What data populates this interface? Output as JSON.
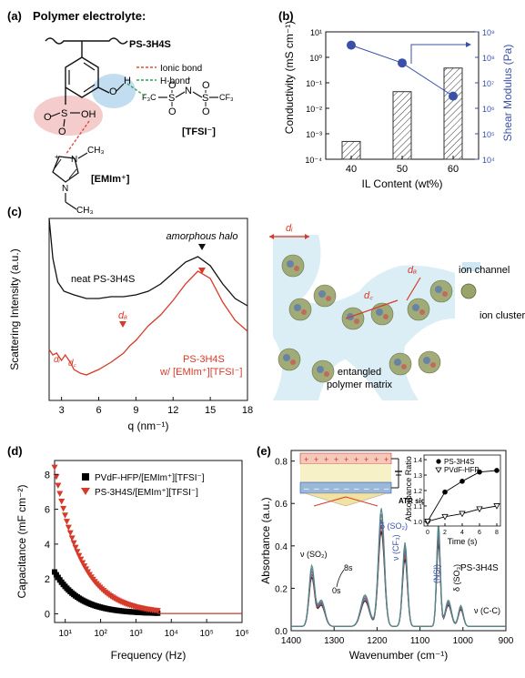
{
  "panel_a": {
    "label": "(a)",
    "title": "Polymer electrolyte:",
    "polymer_name": "PS-3H4S",
    "legend": {
      "ionic": "Ionic bond",
      "hbond": "H-bond"
    },
    "anion_label": "[TFSI⁻]",
    "cation_label": "[EMIm⁺]",
    "colors": {
      "ionic": "#e04a3c",
      "hbond": "#2aa655",
      "red_halo": "#f4c7c7",
      "blue_halo": "#bcd9ee"
    }
  },
  "chart_data": [
    {
      "id": "b",
      "type": "bar",
      "panel_label": "(b)",
      "categories": [
        "40",
        "50",
        "60"
      ],
      "series": [
        {
          "name": "Conductivity",
          "values": [
            0.0005,
            0.045,
            0.38
          ]
        }
      ],
      "secondary_series": [
        {
          "name": "Shear Modulus",
          "type": "line",
          "values": [
            300000000.0,
            60000000.0,
            3000000.0
          ]
        }
      ],
      "xlabel": "IL Content (wt%)",
      "ylabel": "Conductivity (mS cm⁻¹)",
      "y2label": "Shear Modulus (Pa)",
      "ylim": [
        0.0001,
        10
      ],
      "y2lim": [
        10000,
        1000000000
      ],
      "yscale": "log",
      "y_ticks": [
        "10⁻⁴",
        "10⁻³",
        "10⁻²",
        "10⁻¹",
        "10⁰",
        "10¹"
      ],
      "y2_ticks": [
        "10⁴",
        "10⁵",
        "10⁶",
        "10⁷",
        "10⁸",
        "10⁹"
      ],
      "grid": false,
      "colors": {
        "bars": "#333333",
        "line": "#3a50a8"
      }
    },
    {
      "id": "c",
      "type": "line",
      "panel_label": "(c)",
      "x_range": [
        2,
        18
      ],
      "x_ticks": [
        "3",
        "6",
        "9",
        "12",
        "15",
        "18"
      ],
      "xlabel": "q (nm⁻¹)",
      "ylabel": "Scattering Intensity (a.u.)",
      "series": [
        {
          "name": "neat PS-3H4S",
          "x": [
            2.0,
            2.3,
            2.7,
            3.2,
            4.0,
            5.0,
            6.0,
            7.0,
            8.0,
            9.0,
            10.0,
            11.0,
            12.0,
            13.0,
            14.0,
            15.0,
            16.0,
            17.0,
            18.0
          ],
          "y": [
            1.0,
            0.78,
            0.65,
            0.6,
            0.58,
            0.56,
            0.56,
            0.57,
            0.57,
            0.58,
            0.6,
            0.64,
            0.7,
            0.76,
            0.79,
            0.74,
            0.64,
            0.56,
            0.52
          ]
        },
        {
          "name": "PS-3H4S w/ [EMIm⁺][TFSI⁻]",
          "x": [
            2.0,
            2.3,
            2.6,
            3.0,
            3.3,
            3.7,
            4.0,
            4.5,
            5.0,
            6.0,
            7.0,
            8.0,
            8.5,
            9.0,
            9.5,
            10.0,
            11.0,
            12.0,
            13.0,
            14.0,
            15.0,
            16.0,
            17.0,
            18.0
          ],
          "y": [
            0.28,
            0.25,
            0.26,
            0.22,
            0.25,
            0.21,
            0.17,
            0.15,
            0.14,
            0.17,
            0.21,
            0.26,
            0.3,
            0.33,
            0.37,
            0.41,
            0.47,
            0.55,
            0.64,
            0.71,
            0.67,
            0.54,
            0.44,
            0.38
          ]
        }
      ],
      "annotations": {
        "halo": "amorphous halo",
        "di": "dᵢ",
        "dc": "d꜀",
        "da": "dₐ",
        "neat_label": "neat PS-3H4S",
        "il_label_1": "PS-3H4S",
        "il_label_2": "w/ [EMIm⁺][TFSI⁻]"
      },
      "colors": {
        "neat": "#111111",
        "il": "#d63a2a"
      }
    },
    {
      "id": "d",
      "type": "scatter",
      "panel_label": "(d)",
      "xscale": "log",
      "x_range": [
        5,
        1000000
      ],
      "x_ticks": [
        "10¹",
        "10²",
        "10³",
        "10⁴",
        "10⁵",
        "10⁶"
      ],
      "ylim": [
        -0.5,
        8.8
      ],
      "y_ticks": [
        "0",
        "2",
        "4",
        "6",
        "8"
      ],
      "xlabel": "Frequency (Hz)",
      "ylabel": "Capacitance (mF cm⁻²)",
      "legend": "top-right",
      "series": [
        {
          "name": "PVdF-HFP/[EMIm⁺][TFSI⁻]",
          "marker": "square",
          "amplitude": 2.4,
          "exponent": 0.62
        },
        {
          "name": "PS-3H4S/[EMIm⁺][TFSI⁻]",
          "marker": "triangle-down",
          "amplitude": 8.4,
          "exponent": 0.58
        }
      ],
      "colors": {
        "pvdf": "#000000",
        "ps": "#d63a2a"
      }
    },
    {
      "id": "e",
      "type": "line",
      "panel_label": "(e)",
      "x_range": [
        1400,
        900
      ],
      "x_ticks": [
        "1400",
        "1300",
        "1200",
        "1100",
        "1000",
        "900"
      ],
      "ylim": [
        0.0,
        0.85
      ],
      "y_ticks": [
        "0.0",
        "0.2",
        "0.4",
        "0.6",
        "0.8"
      ],
      "xlabel": "Wavenumber (cm⁻¹)",
      "ylabel": "Absorbance (a.u.)",
      "series_note": "0s to 8s",
      "annotations": {
        "sample": "PS-3H4S",
        "t0": "0s",
        "t8": "8s",
        "so2a": "ν (SO₂)",
        "so2b": "δ (SO₂)",
        "cf3": "ν (CF₃)",
        "nsi": "(NSI)",
        "so3": "δ (SO₃)",
        "cc": "ν (C-C)",
        "atr": "ATR signal"
      },
      "inset": {
        "type": "line",
        "xlabel": "Time (s)",
        "ylabel": "Absorbance Ratio",
        "x_ticks": [
          "0",
          "2",
          "4",
          "6",
          "8"
        ],
        "y_ticks": [
          "1.0",
          "1.1",
          "1.2",
          "1.3",
          "1.4"
        ],
        "series": [
          {
            "name": "PS-3H4S",
            "x": [
              0,
              2,
              4,
              6,
              8
            ],
            "y": [
              1.0,
              1.19,
              1.26,
              1.32,
              1.33
            ]
          },
          {
            "name": "PVdF-HFP",
            "x": [
              0,
              2,
              4,
              6,
              8
            ],
            "y": [
              1.0,
              1.03,
              1.05,
              1.08,
              1.1
            ]
          }
        ]
      },
      "colors": {
        "c1": "#222222",
        "c2": "#c4374c",
        "c3": "#5566b0",
        "c4": "#7a7a7a",
        "c5": "#4f8a8a"
      }
    }
  ],
  "panel_c_schematic": {
    "labels": {
      "di": "dᵢ",
      "da": "dₐ",
      "dc": "d꜀",
      "channel": "ion channel",
      "cluster": "ion cluster",
      "matrix_1": "entangled",
      "matrix_2": "polymer matrix"
    },
    "colors": {
      "channel": "#cfe7f2",
      "arrow": "#d63a2a"
    }
  }
}
